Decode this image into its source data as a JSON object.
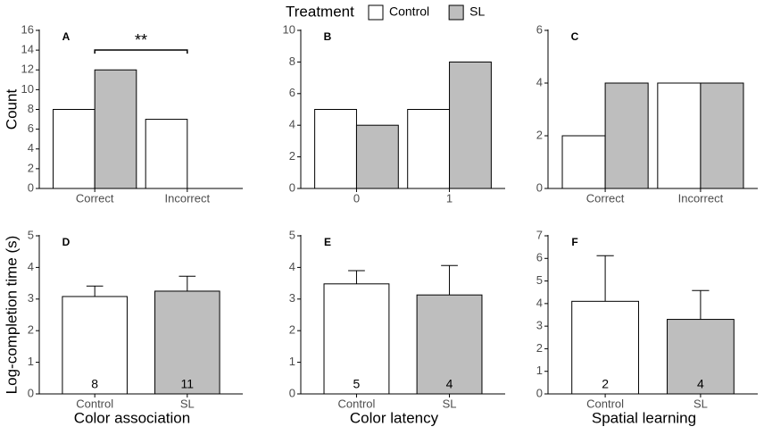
{
  "legend_title": "Treatment",
  "chart_data": [
    {
      "type": "grouped_bar",
      "panel_label": "A",
      "y_label": "Count",
      "annotation": "**",
      "categories": [
        "Correct",
        "Incorrect"
      ],
      "series": [
        {
          "name": "Control",
          "color": "#ffffff",
          "values": [
            8,
            7
          ]
        },
        {
          "name": "SL",
          "color": "#bebebe",
          "values": [
            12,
            0
          ]
        }
      ],
      "ylim": [
        0,
        16
      ],
      "yticks": [
        0,
        2,
        4,
        6,
        8,
        10,
        12,
        14,
        16
      ]
    },
    {
      "type": "grouped_bar",
      "panel_label": "B",
      "categories": [
        "0",
        "1"
      ],
      "series": [
        {
          "name": "Control",
          "color": "#ffffff",
          "values": [
            5,
            5
          ]
        },
        {
          "name": "SL",
          "color": "#bebebe",
          "values": [
            4,
            8
          ]
        }
      ],
      "ylim": [
        0,
        10
      ],
      "yticks": [
        0,
        2,
        4,
        6,
        8,
        10
      ]
    },
    {
      "type": "grouped_bar",
      "panel_label": "C",
      "categories": [
        "Correct",
        "Incorrect"
      ],
      "series": [
        {
          "name": "Control",
          "color": "#ffffff",
          "values": [
            2,
            4
          ]
        },
        {
          "name": "SL",
          "color": "#bebebe",
          "values": [
            4,
            4
          ]
        }
      ],
      "ylim": [
        0,
        6
      ],
      "yticks": [
        0,
        2,
        4,
        6
      ]
    },
    {
      "type": "bar",
      "panel_label": "D",
      "y_label": "Log-completion time (s)",
      "x_label": "Color association",
      "categories": [
        "Control",
        "SL"
      ],
      "colors": [
        "#ffffff",
        "#bebebe"
      ],
      "values": [
        3.08,
        3.25
      ],
      "errors": [
        0.33,
        0.47
      ],
      "n": [
        8,
        11
      ],
      "ylim": [
        0,
        5
      ],
      "yticks": [
        0,
        1,
        2,
        3,
        4,
        5
      ]
    },
    {
      "type": "bar",
      "panel_label": "E",
      "x_label": "Color latency",
      "categories": [
        "Control",
        "SL"
      ],
      "colors": [
        "#ffffff",
        "#bebebe"
      ],
      "values": [
        3.48,
        3.13
      ],
      "errors": [
        0.42,
        0.93
      ],
      "n": [
        5,
        4
      ],
      "ylim": [
        0,
        5
      ],
      "yticks": [
        0,
        1,
        2,
        3,
        4,
        5
      ]
    },
    {
      "type": "bar",
      "panel_label": "F",
      "x_label": "Spatial learning",
      "categories": [
        "Control",
        "SL"
      ],
      "colors": [
        "#ffffff",
        "#bebebe"
      ],
      "values": [
        4.1,
        3.3
      ],
      "errors": [
        2.02,
        1.28
      ],
      "n": [
        2,
        4
      ],
      "ylim": [
        0,
        7
      ],
      "yticks": [
        0,
        1,
        2,
        3,
        4,
        5,
        6,
        7
      ]
    }
  ]
}
